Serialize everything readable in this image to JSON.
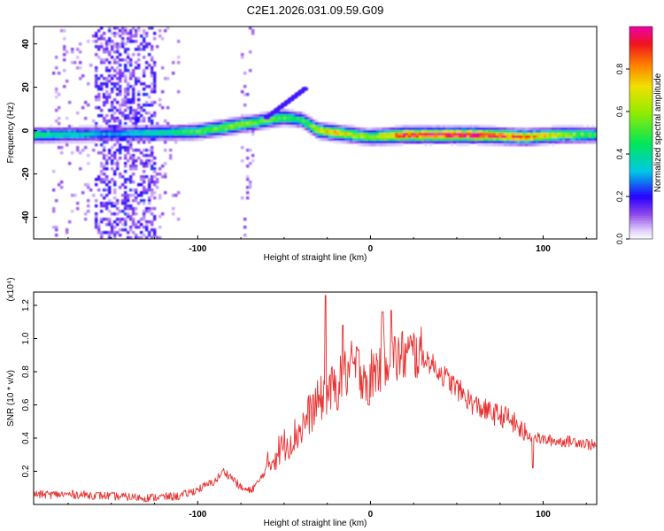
{
  "figure": {
    "title": "C2E1.2026.031.09.59.G09"
  },
  "chart_data": [
    {
      "type": "heatmap",
      "title": "C2E1.2026.031.09.59.G09",
      "xlabel": "Height of straight line (km)",
      "ylabel": "Frequency (Hz)",
      "xlim": [
        -195,
        131
      ],
      "ylim": [
        -50,
        48
      ],
      "xticks": [
        -100,
        0,
        100
      ],
      "xtick_labels": [
        "-100",
        "0",
        "100"
      ],
      "yticks": [
        -40,
        -20,
        0,
        20,
        40
      ],
      "ytick_labels": [
        "-40",
        "-20",
        "0",
        "20",
        "40"
      ],
      "colorbar": {
        "label": "Normalized spectral amplitude",
        "range": [
          0,
          1
        ],
        "ticks": [
          0.0,
          0.2,
          0.4,
          0.6,
          0.8
        ],
        "tick_labels": [
          "0.0",
          "0.2",
          "0.4",
          "0.6",
          "0.8"
        ]
      },
      "ridge": {
        "x": [
          -195,
          -150,
          -120,
          -100,
          -80,
          -65,
          -50,
          -40,
          -30,
          -20,
          -10,
          0,
          20,
          60,
          90,
          110,
          131
        ],
        "frequency": [
          -2,
          -1.5,
          -1,
          -0.5,
          2,
          4,
          6,
          5,
          0,
          -1,
          -2,
          -3,
          -2,
          -2,
          -3,
          -2,
          -2
        ],
        "amplitude": [
          0.45,
          0.3,
          0.4,
          0.5,
          0.6,
          0.55,
          0.5,
          0.45,
          0.7,
          0.75,
          0.65,
          0.6,
          0.95,
          1.0,
          0.85,
          0.65,
          0.5
        ]
      },
      "noise_band": {
        "x_range": [
          -160,
          -125
        ],
        "frequency_range": [
          -50,
          48
        ],
        "amplitude": 0.15
      }
    },
    {
      "type": "line",
      "xlabel": "Height of straight line (km)",
      "ylabel": "SNR (10 * v/v)",
      "y_multiplier_label": "(x10⁴)",
      "xlim": [
        -195,
        131
      ],
      "ylim": [
        0,
        1.28
      ],
      "xticks": [
        -100,
        0,
        100
      ],
      "xtick_labels": [
        "-100",
        "0",
        "100"
      ],
      "yticks": [
        0.2,
        0.4,
        0.6,
        0.8,
        1.0,
        1.2
      ],
      "ytick_labels": [
        "0.2",
        "0.4",
        "0.6",
        "0.8",
        "1.0",
        "1.2"
      ],
      "series": [
        {
          "name": "SNR",
          "color": "#e8302f",
          "x": [
            -195,
            -170,
            -150,
            -130,
            -110,
            -100,
            -90,
            -85,
            -80,
            -75,
            -70,
            -65,
            -60,
            -55,
            -50,
            -45,
            -40,
            -35,
            -30,
            -25,
            -20,
            -15,
            -10,
            -5,
            0,
            5,
            10,
            15,
            20,
            25,
            30,
            35,
            40,
            45,
            50,
            55,
            60,
            70,
            80,
            90,
            100,
            110,
            120,
            131
          ],
          "values": [
            0.06,
            0.06,
            0.05,
            0.04,
            0.05,
            0.09,
            0.14,
            0.2,
            0.16,
            0.1,
            0.08,
            0.13,
            0.22,
            0.3,
            0.36,
            0.4,
            0.46,
            0.55,
            0.62,
            0.68,
            0.7,
            0.78,
            0.83,
            0.8,
            0.78,
            0.83,
            0.9,
            0.88,
            0.9,
            0.91,
            0.9,
            0.85,
            0.8,
            0.75,
            0.7,
            0.65,
            0.6,
            0.55,
            0.52,
            0.42,
            0.39,
            0.38,
            0.38,
            0.35
          ],
          "spikes": [
            [
              -26,
              1.26
            ],
            [
              -16,
              1.08
            ],
            [
              7,
              1.16
            ],
            [
              12,
              1.17
            ],
            [
              -1,
              0.6
            ],
            [
              -8,
              0.95
            ],
            [
              94,
              0.22
            ]
          ]
        }
      ]
    }
  ]
}
